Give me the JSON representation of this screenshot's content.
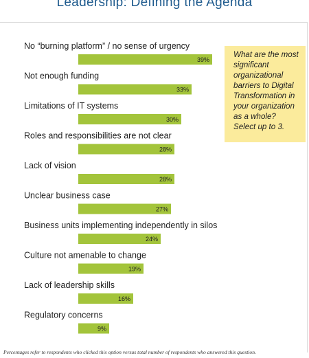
{
  "title": "Leadership: Defining the Agenda",
  "question": "What are the most significant organizational barriers to Digital Transformation in your organization as a whole? Select up to 3.",
  "footnote": "Percentages refer to respondents who clicked this option versus total number of respondents who answered this question.",
  "colors": {
    "bar": "#a3c43b",
    "title": "#1f5b8e",
    "note_bg": "#fbeb9c"
  },
  "chart_data": {
    "type": "bar",
    "orientation": "horizontal",
    "categories": [
      "No “burning platform” / no sense of urgency",
      "Not enough funding",
      "Limitations of IT systems",
      "Roles and responsibilities are not clear",
      "Lack of vision",
      "Unclear business case",
      "Business units implementing independently in silos",
      "Culture not amenable to change",
      "Lack of leadership skills",
      "Regulatory concerns"
    ],
    "values": [
      39,
      33,
      30,
      28,
      28,
      27,
      24,
      19,
      16,
      9
    ],
    "value_labels": [
      "39%",
      "33%",
      "30%",
      "28%",
      "28%",
      "27%",
      "24%",
      "19%",
      "16%",
      "9%"
    ],
    "unit": "%",
    "grid": false,
    "legend": "none"
  }
}
